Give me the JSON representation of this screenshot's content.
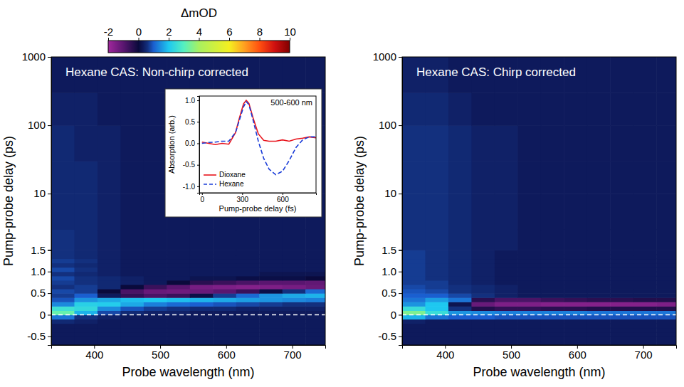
{
  "chart_data": [
    {
      "type": "heatmap",
      "title": "Hexane CAS: Non-chirp corrected",
      "x_label": "Probe wavelength (nm)",
      "y_label": "Pump-probe delay (ps)",
      "xlim": [
        335,
        750
      ],
      "xticks": [
        400,
        500,
        600,
        700
      ],
      "ylim": [
        -0.7,
        1000
      ],
      "y_break": 1.5,
      "log": "y",
      "yticks": [
        -0.5,
        0,
        0.5,
        {
          "value": 1,
          "label": "1.0"
        },
        1.5,
        10,
        100,
        1000
      ],
      "hline": 0,
      "colorbar": {
        "title": "ΔmOD",
        "range": [
          -2,
          10
        ],
        "ticks": [
          -2,
          0,
          2,
          4,
          6,
          8,
          10
        ]
      },
      "x_edges": [
        335,
        370,
        405,
        440,
        475,
        510,
        545,
        580,
        615,
        650,
        685,
        720,
        750
      ],
      "y_edges": [
        -0.7,
        -0.6,
        -0.5,
        -0.4,
        -0.3,
        -0.2,
        -0.1,
        0,
        0.1,
        0.2,
        0.3,
        0.4,
        0.5,
        0.6,
        0.7,
        0.8,
        0.9,
        1.0,
        1.1,
        1.2,
        1.3,
        1.4,
        1.5,
        3,
        10,
        30,
        100,
        300,
        1000
      ],
      "values": [
        [
          0.3,
          0.3,
          0.3,
          0.3,
          0.3,
          0.3,
          0.3,
          0.3,
          0.3,
          0.3,
          0.3,
          0.3
        ],
        [
          0.3,
          0.3,
          0.3,
          0.3,
          0.3,
          0.3,
          0.3,
          0.3,
          0.3,
          0.3,
          0.3,
          0.3
        ],
        [
          0.3,
          0.3,
          0.3,
          0.3,
          0.3,
          0.3,
          0.3,
          0.3,
          0.3,
          0.3,
          0.3,
          0.3
        ],
        [
          0.3,
          0.3,
          0.3,
          0.3,
          0.3,
          0.3,
          0.3,
          0.3,
          0.3,
          0.3,
          0.3,
          0.3
        ],
        [
          0.3,
          0.3,
          0.3,
          0.3,
          0.3,
          0.3,
          0.3,
          0.3,
          0.3,
          0.3,
          0.3,
          0.3
        ],
        [
          0.5,
          0.4,
          0.3,
          0.3,
          0.3,
          0.3,
          0.3,
          0.3,
          0.3,
          0.3,
          0.3,
          0.3
        ],
        [
          1.2,
          0.6,
          0.4,
          0.3,
          0.3,
          0.3,
          0.3,
          0.3,
          0.3,
          0.3,
          0.3,
          0.3
        ],
        [
          3.2,
          1.8,
          0.8,
          0.5,
          0.4,
          0.4,
          0.3,
          0.3,
          0.3,
          0.3,
          0.3,
          0.3
        ],
        [
          2.6,
          2.4,
          1.4,
          0.9,
          0.7,
          0.6,
          0.5,
          0.5,
          0.4,
          0.4,
          0.4,
          0.4
        ],
        [
          1.4,
          2.2,
          2.1,
          1.7,
          1.3,
          1.1,
          1.0,
          0.9,
          0.8,
          0.7,
          0.6,
          0.6
        ],
        [
          0.9,
          1.5,
          1.7,
          1.9,
          2.0,
          1.9,
          1.8,
          1.7,
          1.6,
          1.5,
          1.4,
          1.3
        ],
        [
          0.7,
          1.0,
          0.3,
          -0.5,
          -0.8,
          -0.6,
          0.1,
          0.7,
          1.1,
          1.5,
          1.7,
          1.8
        ],
        [
          0.8,
          0.7,
          0.0,
          -0.8,
          -1.2,
          -1.3,
          -1.2,
          -1.0,
          -0.6,
          0.1,
          0.6,
          1.1
        ],
        [
          0.6,
          0.7,
          0.5,
          0.0,
          -0.6,
          -1.0,
          -1.4,
          -1.5,
          -1.6,
          -1.5,
          -1.4,
          -1.2
        ],
        [
          0.7,
          0.6,
          0.5,
          0.4,
          0.3,
          0.0,
          -0.4,
          -0.6,
          -0.8,
          -1.0,
          -1.0,
          -1.1
        ],
        [
          0.8,
          0.6,
          0.5,
          0.4,
          0.3,
          0.3,
          0.2,
          0.2,
          0.1,
          0.1,
          0.1,
          0.0
        ],
        [
          0.6,
          0.5,
          0.4,
          0.3,
          0.3,
          0.3,
          0.3,
          0.3,
          0.3,
          0.2,
          0.2,
          0.2
        ],
        [
          0.8,
          0.6,
          0.4,
          0.3,
          0.3,
          0.3,
          0.3,
          0.3,
          0.3,
          0.3,
          0.3,
          0.3
        ],
        [
          0.6,
          0.5,
          0.4,
          0.3,
          0.3,
          0.3,
          0.3,
          0.3,
          0.3,
          0.3,
          0.3,
          0.3
        ],
        [
          0.7,
          0.6,
          0.4,
          0.3,
          0.3,
          0.3,
          0.3,
          0.3,
          0.3,
          0.3,
          0.3,
          0.3
        ],
        [
          0.6,
          0.5,
          0.4,
          0.3,
          0.3,
          0.3,
          0.3,
          0.3,
          0.3,
          0.3,
          0.3,
          0.3
        ],
        [
          0.6,
          0.5,
          0.4,
          0.3,
          0.3,
          0.3,
          0.3,
          0.3,
          0.3,
          0.3,
          0.3,
          0.3
        ],
        [
          0.6,
          0.5,
          0.4,
          0.3,
          0.3,
          0.3,
          0.3,
          0.3,
          0.3,
          0.3,
          0.3,
          0.3
        ],
        [
          0.5,
          0.5,
          0.4,
          0.3,
          0.3,
          0.3,
          0.3,
          0.3,
          0.3,
          0.3,
          0.3,
          0.3
        ],
        [
          0.5,
          0.5,
          0.4,
          0.3,
          0.3,
          0.3,
          0.3,
          0.3,
          0.3,
          0.3,
          0.3,
          0.3
        ],
        [
          0.5,
          0.4,
          0.4,
          0.3,
          0.3,
          0.3,
          0.3,
          0.3,
          0.3,
          0.3,
          0.3,
          0.3
        ],
        [
          0.4,
          0.4,
          0.3,
          0.3,
          0.3,
          0.3,
          0.3,
          0.3,
          0.3,
          0.3,
          0.3,
          0.3
        ],
        [
          0.3,
          0.3,
          0.3,
          0.3,
          0.3,
          0.3,
          0.3,
          0.3,
          0.3,
          0.3,
          0.3,
          0.3
        ]
      ]
    },
    {
      "type": "heatmap",
      "title": "Hexane CAS: Chirp corrected",
      "x_label": "Probe wavelength (nm)",
      "y_label": "Pump-probe delay (ps)",
      "xlim": [
        335,
        750
      ],
      "xticks": [
        400,
        500,
        600,
        700
      ],
      "ylim": [
        -0.7,
        1000
      ],
      "y_break": 1.5,
      "log": "y",
      "yticks": [
        -0.5,
        0,
        0.5,
        {
          "value": 1,
          "label": "1.0"
        },
        1.5,
        10,
        100,
        1000
      ],
      "hline": 0,
      "x_edges": [
        335,
        370,
        405,
        440,
        475,
        510,
        545,
        580,
        615,
        650,
        685,
        720,
        750
      ],
      "y_edges": [
        -0.7,
        -0.6,
        -0.5,
        -0.4,
        -0.3,
        -0.2,
        -0.1,
        0,
        0.1,
        0.2,
        0.3,
        0.4,
        0.5,
        0.6,
        0.7,
        0.8,
        0.9,
        1.0,
        1.1,
        1.2,
        1.3,
        1.4,
        1.5,
        3,
        10,
        30,
        100,
        300,
        1000
      ],
      "values": [
        [
          0.3,
          0.3,
          0.3,
          0.3,
          0.3,
          0.3,
          0.3,
          0.3,
          0.3,
          0.3,
          0.3,
          0.3
        ],
        [
          0.3,
          0.3,
          0.3,
          0.3,
          0.3,
          0.3,
          0.3,
          0.3,
          0.3,
          0.3,
          0.3,
          0.3
        ],
        [
          0.3,
          0.3,
          0.3,
          0.3,
          0.3,
          0.3,
          0.3,
          0.3,
          0.3,
          0.3,
          0.3,
          0.3
        ],
        [
          0.3,
          0.3,
          0.3,
          0.3,
          0.3,
          0.3,
          0.3,
          0.3,
          0.3,
          0.3,
          0.3,
          0.3
        ],
        [
          0.3,
          0.3,
          0.3,
          0.3,
          0.3,
          0.3,
          0.3,
          0.3,
          0.3,
          0.3,
          0.3,
          0.3
        ],
        [
          0.4,
          0.3,
          0.3,
          0.3,
          0.3,
          0.3,
          0.3,
          0.3,
          0.3,
          0.3,
          0.3,
          0.3
        ],
        [
          1.8,
          1.2,
          1.0,
          1.0,
          0.9,
          0.9,
          0.9,
          0.9,
          0.9,
          0.9,
          0.9,
          0.9
        ],
        [
          3.5,
          2.5,
          1.5,
          1.4,
          1.3,
          1.3,
          1.3,
          1.3,
          1.2,
          1.2,
          1.2,
          1.2
        ],
        [
          2.5,
          2.0,
          0.6,
          -0.3,
          -0.5,
          -0.5,
          -0.4,
          -0.4,
          -0.3,
          -0.3,
          -0.3,
          -0.3
        ],
        [
          1.5,
          2.0,
          0.2,
          -1.2,
          -1.5,
          -1.5,
          -1.6,
          -1.6,
          -1.6,
          -1.6,
          -1.6,
          -1.5
        ],
        [
          1.2,
          1.6,
          1.2,
          -0.4,
          -0.8,
          -0.8,
          -0.6,
          -0.5,
          -0.4,
          -0.4,
          -0.3,
          -0.3
        ],
        [
          1.0,
          1.0,
          0.8,
          0.6,
          0.4,
          0.3,
          0.3,
          0.3,
          0.3,
          0.3,
          0.3,
          0.3
        ],
        [
          0.9,
          0.8,
          0.6,
          0.5,
          0.4,
          0.3,
          0.3,
          0.3,
          0.3,
          0.3,
          0.3,
          0.3
        ],
        [
          0.8,
          0.7,
          0.6,
          0.5,
          0.4,
          0.3,
          0.3,
          0.3,
          0.3,
          0.3,
          0.3,
          0.3
        ],
        [
          0.7,
          0.7,
          0.5,
          0.4,
          0.3,
          0.3,
          0.3,
          0.3,
          0.3,
          0.3,
          0.3,
          0.3
        ],
        [
          0.7,
          0.6,
          0.5,
          0.4,
          0.3,
          0.3,
          0.3,
          0.3,
          0.3,
          0.3,
          0.3,
          0.3
        ],
        [
          0.7,
          0.6,
          0.5,
          0.4,
          0.3,
          0.3,
          0.3,
          0.3,
          0.3,
          0.3,
          0.3,
          0.3
        ],
        [
          0.7,
          0.6,
          0.5,
          0.4,
          0.3,
          0.3,
          0.3,
          0.3,
          0.3,
          0.3,
          0.3,
          0.3
        ],
        [
          0.7,
          0.6,
          0.5,
          0.4,
          0.3,
          0.3,
          0.3,
          0.3,
          0.3,
          0.3,
          0.3,
          0.3
        ],
        [
          0.7,
          0.6,
          0.5,
          0.4,
          0.3,
          0.3,
          0.3,
          0.3,
          0.3,
          0.3,
          0.3,
          0.3
        ],
        [
          0.7,
          0.6,
          0.5,
          0.4,
          0.3,
          0.3,
          0.3,
          0.3,
          0.3,
          0.3,
          0.3,
          0.3
        ],
        [
          0.7,
          0.6,
          0.5,
          0.4,
          0.3,
          0.3,
          0.3,
          0.3,
          0.3,
          0.3,
          0.3,
          0.3
        ],
        [
          0.6,
          0.6,
          0.5,
          0.4,
          0.4,
          0.3,
          0.3,
          0.3,
          0.3,
          0.3,
          0.3,
          0.3
        ],
        [
          0.6,
          0.6,
          0.5,
          0.4,
          0.4,
          0.3,
          0.3,
          0.3,
          0.3,
          0.3,
          0.3,
          0.3
        ],
        [
          0.6,
          0.6,
          0.5,
          0.4,
          0.4,
          0.3,
          0.3,
          0.3,
          0.3,
          0.3,
          0.3,
          0.3
        ],
        [
          0.6,
          0.6,
          0.5,
          0.4,
          0.4,
          0.3,
          0.3,
          0.3,
          0.3,
          0.3,
          0.3,
          0.3
        ],
        [
          0.5,
          0.5,
          0.4,
          0.3,
          0.3,
          0.3,
          0.3,
          0.3,
          0.3,
          0.3,
          0.3,
          0.3
        ],
        [
          0.4,
          0.4,
          0.3,
          0.3,
          0.3,
          0.3,
          0.3,
          0.3,
          0.3,
          0.3,
          0.3,
          0.3
        ]
      ]
    },
    {
      "type": "line",
      "annotation": "500-600 nm",
      "x_label": "Pump-probe delay (fs)",
      "y_label": "Absorption (arb.)",
      "xlim": [
        -20,
        850
      ],
      "xticks": [
        0,
        300,
        600
      ],
      "ylim": [
        -1.15,
        1.1
      ],
      "yticks": [
        {
          "value": -1,
          "label": "-1.0"
        },
        -0.5,
        {
          "value": 0,
          "label": "0.0"
        },
        0.5,
        {
          "value": 1,
          "label": "1.0"
        }
      ],
      "legend": "lower left",
      "x": [
        0,
        50,
        100,
        150,
        200,
        250,
        280,
        310,
        330,
        350,
        380,
        420,
        460,
        500,
        550,
        600,
        650,
        700,
        750,
        800,
        850
      ],
      "series": [
        {
          "name": "Dioxane",
          "color": "#e8141c",
          "line_style": "solid",
          "values": [
            0.03,
            0.0,
            -0.03,
            0.0,
            -0.02,
            0.25,
            0.6,
            0.92,
            1.0,
            0.93,
            0.6,
            0.22,
            0.07,
            0.05,
            0.05,
            0.08,
            0.05,
            0.1,
            0.12,
            0.15,
            0.13
          ]
        },
        {
          "name": "Hexane",
          "color": "#1a3cd8",
          "line_style": "dashed",
          "values": [
            0.0,
            0.02,
            0.03,
            0.05,
            0.05,
            0.25,
            0.55,
            0.85,
            0.97,
            0.9,
            0.55,
            0.05,
            -0.35,
            -0.6,
            -0.73,
            -0.65,
            -0.4,
            -0.1,
            0.08,
            0.15,
            0.15
          ]
        }
      ]
    }
  ]
}
